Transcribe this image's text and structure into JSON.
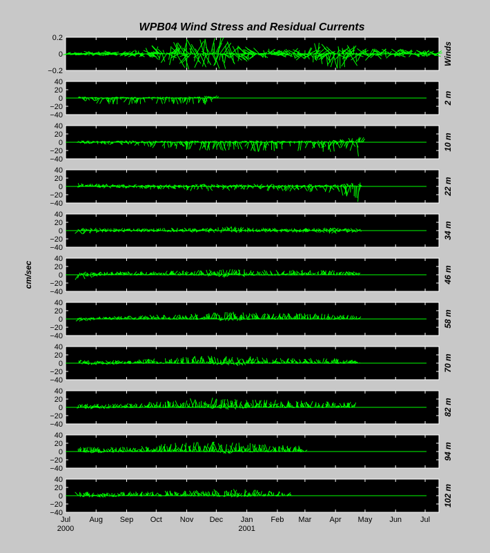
{
  "chart_data": {
    "type": "line",
    "title": "WPB04  Wind Stress and Residual Currents",
    "ylabel": "cm/sec",
    "xlim": [
      "2000-07-01",
      "2001-07-15"
    ],
    "x_ticks": [
      {
        "label": "Jul",
        "year": "2000"
      },
      {
        "label": "Aug",
        "year": ""
      },
      {
        "label": "Sep",
        "year": ""
      },
      {
        "label": "Oct",
        "year": ""
      },
      {
        "label": "Nov",
        "year": ""
      },
      {
        "label": "Dec",
        "year": ""
      },
      {
        "label": "Jan",
        "year": "2001"
      },
      {
        "label": "Feb",
        "year": ""
      },
      {
        "label": "Mar",
        "year": ""
      },
      {
        "label": "Apr",
        "year": ""
      },
      {
        "label": "May",
        "year": ""
      },
      {
        "label": "Jun",
        "year": ""
      },
      {
        "label": "Jul",
        "year": ""
      }
    ],
    "line_color": "#00ff00",
    "grid": false,
    "panels": [
      {
        "label": "Winds",
        "ylim": [
          -0.2,
          0.2
        ],
        "yticks": [
          "0.2",
          "0",
          "−0.2"
        ],
        "start": "2000-07-01",
        "end": "2001-07-14",
        "envelope": [
          [
            0.02,
            0.01
          ],
          [
            0.03,
            0.02
          ],
          [
            0.04,
            0.03
          ],
          [
            0.03,
            0.03
          ],
          [
            0.08,
            0.05
          ],
          [
            0.12,
            0.12
          ],
          [
            0.18,
            0.2
          ],
          [
            0.2,
            0.2
          ],
          [
            0.2,
            0.2
          ],
          [
            0.12,
            0.1
          ],
          [
            0.08,
            0.06
          ],
          [
            0.05,
            0.04
          ],
          [
            0.08,
            0.07
          ],
          [
            0.15,
            0.15
          ],
          [
            0.12,
            0.2
          ],
          [
            0.1,
            0.12
          ],
          [
            0.07,
            0.06
          ],
          [
            0.06,
            0.05
          ],
          [
            0.05,
            0.04
          ],
          [
            0.04,
            0.03
          ]
        ]
      },
      {
        "label": "2 m",
        "ylim": [
          -40,
          40
        ],
        "yticks": [
          "40",
          "20",
          "0",
          "−20",
          "−40"
        ],
        "start": "2000-07-14",
        "end": "2000-12-01",
        "envelope": [
          [
            4,
            -16
          ],
          [
            2,
            -14
          ],
          [
            3,
            -16
          ],
          [
            2,
            -18
          ],
          [
            3,
            -14
          ],
          [
            2,
            -16
          ],
          [
            3,
            -15
          ],
          [
            10,
            -20
          ]
        ]
      },
      {
        "label": "10 m",
        "ylim": [
          -40,
          40
        ],
        "yticks": [
          "40",
          "20",
          "0",
          "−20",
          "−40"
        ],
        "start": "2000-07-14",
        "end": "2001-04-28",
        "envelope": [
          [
            4,
            -4
          ],
          [
            3,
            -5
          ],
          [
            4,
            -8
          ],
          [
            3,
            -14
          ],
          [
            3,
            -18
          ],
          [
            4,
            -22
          ],
          [
            3,
            -20
          ],
          [
            4,
            -24
          ],
          [
            3,
            -20
          ],
          [
            4,
            -22
          ],
          [
            5,
            -26
          ],
          [
            14,
            -40
          ]
        ]
      },
      {
        "label": "22 m",
        "ylim": [
          -40,
          40
        ],
        "yticks": [
          "40",
          "20",
          "0",
          "−20",
          "−40"
        ],
        "start": "2000-07-14",
        "end": "2001-04-28",
        "envelope": [
          [
            8,
            -4
          ],
          [
            6,
            -4
          ],
          [
            5,
            -6
          ],
          [
            4,
            -8
          ],
          [
            4,
            -10
          ],
          [
            6,
            -12
          ],
          [
            5,
            -10
          ],
          [
            6,
            -10
          ],
          [
            5,
            -12
          ],
          [
            6,
            -14
          ],
          [
            5,
            -20
          ],
          [
            10,
            -40
          ]
        ]
      },
      {
        "label": "34 m",
        "ylim": [
          -40,
          40
        ],
        "yticks": [
          "40",
          "20",
          "0",
          "−20",
          "−40"
        ],
        "start": "2000-07-14",
        "end": "2001-04-25",
        "envelope": [
          [
            8,
            -10
          ],
          [
            6,
            -5
          ],
          [
            5,
            -4
          ],
          [
            6,
            -4
          ],
          [
            7,
            -5
          ],
          [
            6,
            -5
          ],
          [
            10,
            -6
          ],
          [
            7,
            -5
          ],
          [
            6,
            -5
          ],
          [
            6,
            -5
          ],
          [
            8,
            -8
          ],
          [
            6,
            -4
          ]
        ]
      },
      {
        "label": "46 m",
        "ylim": [
          -40,
          40
        ],
        "yticks": [
          "40",
          "20",
          "0",
          "−20",
          "−40"
        ],
        "start": "2000-07-14",
        "end": "2001-04-25",
        "envelope": [
          [
            8,
            -12
          ],
          [
            7,
            -2
          ],
          [
            8,
            -1
          ],
          [
            9,
            -1
          ],
          [
            10,
            -1
          ],
          [
            12,
            -2
          ],
          [
            14,
            -8
          ],
          [
            12,
            -2
          ],
          [
            12,
            -1
          ],
          [
            12,
            -1
          ],
          [
            11,
            -1
          ],
          [
            8,
            -1
          ]
        ]
      },
      {
        "label": "58 m",
        "ylim": [
          -40,
          40
        ],
        "yticks": [
          "40",
          "20",
          "0",
          "−20",
          "−40"
        ],
        "start": "2000-07-14",
        "end": "2001-04-25",
        "envelope": [
          [
            6,
            -8
          ],
          [
            6,
            -2
          ],
          [
            8,
            -1
          ],
          [
            10,
            -1
          ],
          [
            12,
            -1
          ],
          [
            16,
            -1
          ],
          [
            18,
            -6
          ],
          [
            16,
            -1
          ],
          [
            14,
            -1
          ],
          [
            14,
            -1
          ],
          [
            12,
            -1
          ],
          [
            8,
            -1
          ]
        ]
      },
      {
        "label": "70 m",
        "ylim": [
          -40,
          40
        ],
        "yticks": [
          "40",
          "20",
          "0",
          "−20",
          "−40"
        ],
        "start": "2000-07-14",
        "end": "2001-04-25",
        "envelope": [
          [
            8,
            -4
          ],
          [
            6,
            -4
          ],
          [
            9,
            -1
          ],
          [
            12,
            -1
          ],
          [
            16,
            -1
          ],
          [
            18,
            -1
          ],
          [
            16,
            -8
          ],
          [
            16,
            -1
          ],
          [
            12,
            -1
          ],
          [
            12,
            -1
          ],
          [
            12,
            -1
          ],
          [
            6,
            -1
          ]
        ]
      },
      {
        "label": "82 m",
        "ylim": [
          -40,
          40
        ],
        "yticks": [
          "40",
          "20",
          "0",
          "−20",
          "−40"
        ],
        "start": "2000-07-14",
        "end": "2001-04-20",
        "envelope": [
          [
            10,
            -4
          ],
          [
            8,
            -4
          ],
          [
            10,
            -1
          ],
          [
            14,
            -1
          ],
          [
            20,
            -1
          ],
          [
            24,
            -1
          ],
          [
            22,
            -6
          ],
          [
            20,
            -1
          ],
          [
            18,
            -1
          ],
          [
            16,
            -1
          ],
          [
            16,
            -1
          ],
          [
            12,
            -1
          ]
        ]
      },
      {
        "label": "94 m",
        "ylim": [
          -40,
          40
        ],
        "yticks": [
          "40",
          "20",
          "0",
          "−20",
          "−40"
        ],
        "start": "2000-07-14",
        "end": "2001-03-01",
        "envelope": [
          [
            12,
            -4
          ],
          [
            10,
            -4
          ],
          [
            12,
            -1
          ],
          [
            16,
            -1
          ],
          [
            22,
            -1
          ],
          [
            26,
            -1
          ],
          [
            22,
            -6
          ],
          [
            20,
            -1
          ],
          [
            16,
            -1
          ],
          [
            14,
            -1
          ]
        ]
      },
      {
        "label": "102 m",
        "ylim": [
          -40,
          40
        ],
        "yticks": [
          "40",
          "20",
          "0",
          "−20",
          "−40"
        ],
        "start": "2000-07-14",
        "end": "2001-02-15",
        "envelope": [
          [
            10,
            -4
          ],
          [
            8,
            -4
          ],
          [
            10,
            -1
          ],
          [
            12,
            -1
          ],
          [
            14,
            -1
          ],
          [
            16,
            -1
          ],
          [
            16,
            -4
          ],
          [
            14,
            -1
          ],
          [
            10,
            -1
          ]
        ]
      }
    ]
  }
}
